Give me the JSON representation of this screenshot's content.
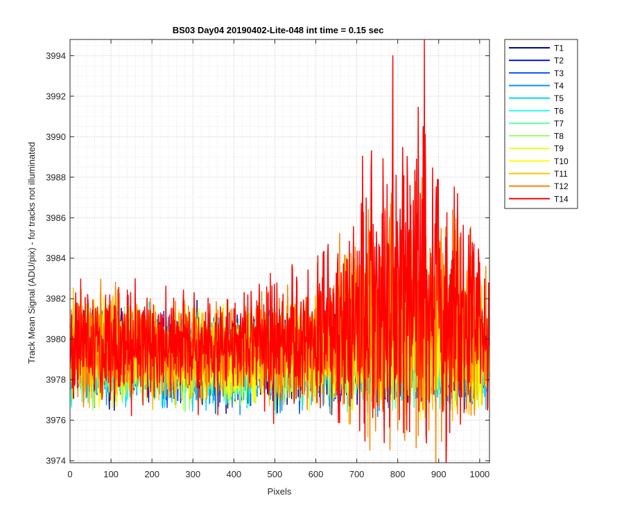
{
  "chart_data": {
    "type": "line",
    "title": "BS03 Day04 20190402-Lite-048 int time = 0.15 sec",
    "xlabel": "Pixels",
    "ylabel": "Track Mean Signal (ADU/pix) - for tracks not illuminated",
    "xlim": [
      0,
      1024
    ],
    "ylim": [
      3973.9,
      3994.8
    ],
    "xticks": [
      0,
      100,
      200,
      300,
      400,
      500,
      600,
      700,
      800,
      900,
      1000
    ],
    "yticks": [
      3974,
      3976,
      3978,
      3980,
      3982,
      3984,
      3986,
      3988,
      3990,
      3992,
      3994
    ],
    "grid": "major and minor, dotted",
    "legend_position": "outside-right-top",
    "x_sampling": "one value per pixel, 0 to 1023",
    "series": [
      {
        "name": "T1",
        "color": "#00008f",
        "baseline": [
          3979.2,
          3979.2,
          3979.1,
          3979.0,
          3979.0,
          3979.0,
          3979.0,
          3979.0,
          3979.0,
          3979.0,
          3979.0
        ],
        "spread": 2.0
      },
      {
        "name": "T2",
        "color": "#0010ff",
        "baseline": [
          3979.2,
          3979.2,
          3979.1,
          3979.0,
          3979.0,
          3979.0,
          3979.0,
          3979.0,
          3979.0,
          3979.0,
          3979.0
        ],
        "spread": 2.0
      },
      {
        "name": "T3",
        "color": "#0050ff",
        "baseline": [
          3979.2,
          3979.2,
          3979.1,
          3979.0,
          3979.0,
          3979.0,
          3979.0,
          3979.0,
          3979.0,
          3979.0,
          3979.0
        ],
        "spread": 2.0
      },
      {
        "name": "T4",
        "color": "#0090ff",
        "baseline": [
          3979.2,
          3979.2,
          3979.1,
          3979.0,
          3979.0,
          3979.0,
          3979.0,
          3979.0,
          3979.1,
          3979.1,
          3979.1
        ],
        "spread": 2.0
      },
      {
        "name": "T5",
        "color": "#00d0ff",
        "baseline": [
          3979.2,
          3979.2,
          3979.1,
          3979.0,
          3979.0,
          3979.0,
          3979.0,
          3979.0,
          3979.1,
          3979.1,
          3979.1
        ],
        "spread": 2.0
      },
      {
        "name": "T6",
        "color": "#20ffdf",
        "baseline": [
          3979.2,
          3979.2,
          3979.1,
          3979.0,
          3979.0,
          3979.0,
          3979.0,
          3979.0,
          3979.2,
          3979.2,
          3979.1
        ],
        "spread": 2.0
      },
      {
        "name": "T7",
        "color": "#60ff9f",
        "baseline": [
          3979.2,
          3979.2,
          3979.1,
          3979.0,
          3979.0,
          3979.0,
          3979.0,
          3979.0,
          3979.2,
          3979.3,
          3979.2
        ],
        "spread": 2.0
      },
      {
        "name": "T8",
        "color": "#9fff60",
        "baseline": [
          3979.2,
          3979.2,
          3979.1,
          3979.0,
          3979.0,
          3979.0,
          3979.0,
          3979.1,
          3979.3,
          3979.4,
          3979.2
        ],
        "spread": 2.0
      },
      {
        "name": "T9",
        "color": "#dfff20",
        "baseline": [
          3979.3,
          3979.3,
          3979.2,
          3979.1,
          3979.1,
          3979.1,
          3979.1,
          3979.3,
          3979.5,
          3979.6,
          3979.3
        ],
        "spread": 2.0
      },
      {
        "name": "T10",
        "color": "#ffff00",
        "baseline": [
          3979.4,
          3979.4,
          3979.3,
          3979.2,
          3979.2,
          3979.2,
          3979.3,
          3979.6,
          3979.9,
          3980.0,
          3979.5
        ],
        "spread": 2.0
      },
      {
        "name": "T11",
        "color": "#ffc000",
        "baseline": [
          3979.5,
          3979.5,
          3979.4,
          3979.3,
          3979.3,
          3979.4,
          3979.6,
          3980.0,
          3980.4,
          3980.6,
          3979.8
        ],
        "spread": 2.0
      },
      {
        "name": "T12",
        "color": "#ff8000",
        "baseline": [
          3979.6,
          3979.6,
          3979.5,
          3979.4,
          3979.5,
          3979.6,
          3979.9,
          3980.6,
          3981.2,
          3981.2,
          3980.1
        ],
        "spread": 2.0
      },
      {
        "name": "T14",
        "color": "#ff0000",
        "baseline": [
          3979.8,
          3979.8,
          3979.7,
          3979.6,
          3979.6,
          3979.8,
          3980.2,
          3981.6,
          3982.4,
          3982.0,
          3980.6
        ],
        "spread": 2.0,
        "peaks": [
          [
            711,
            3986.7
          ],
          [
            736,
            3989.3
          ],
          [
            762,
            3986.2
          ],
          [
            788,
            3994.0
          ],
          [
            796,
            3988.1
          ],
          [
            830,
            3987.6
          ],
          [
            848,
            3986.2
          ],
          [
            855,
            3987.2
          ],
          [
            862,
            3990.5
          ],
          [
            865,
            3994.8
          ],
          [
            868,
            3988.2
          ],
          [
            893,
            3986.5
          ]
        ]
      }
    ]
  }
}
